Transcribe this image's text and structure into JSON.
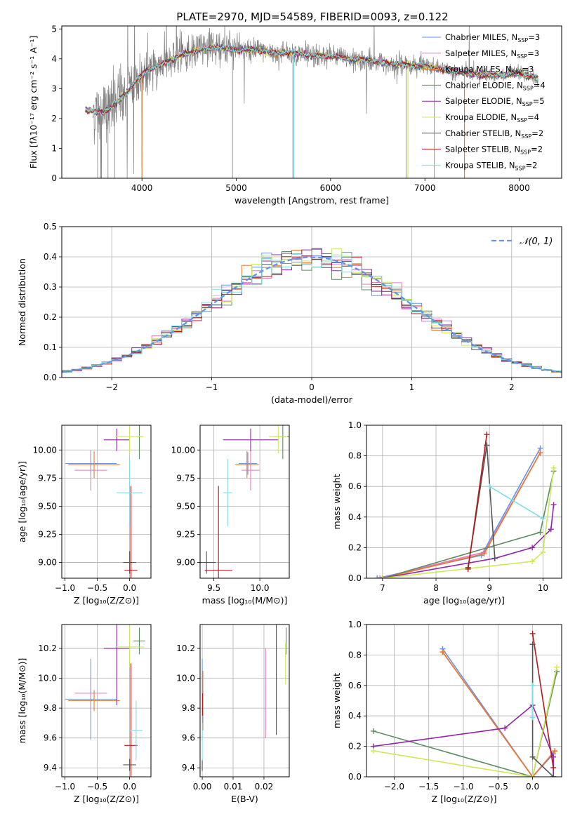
{
  "title": "PLATE=2970, MJD=54589, FIBERID=0093, z=0.122",
  "colors": {
    "chabrier_miles": "#6495ed",
    "salpeter_miles": "#e377c2",
    "kroupa_miles": "#e8792b",
    "chabrier_elodie": "#5e8c63",
    "salpeter_elodie": "#9126a8",
    "kroupa_elodie": "#cde85a",
    "chabrier_stelib": "#555555",
    "salpeter_stelib": "#b01a1a",
    "kroupa_stelib": "#7fdde6",
    "data": "#808080"
  },
  "chart_data": [
    {
      "id": "spectrum",
      "type": "line",
      "xlabel": "wavelength [Angstrom, rest frame]",
      "ylabel": "Flux [fλ10⁻¹⁷ erg cm⁻² s⁻¹ A⁻¹]",
      "xlim": [
        3150,
        8450
      ],
      "ylim": [
        0,
        5.1
      ],
      "xticks": [
        4000,
        5000,
        6000,
        7000,
        8000
      ],
      "yticks": [
        0,
        1,
        2,
        3,
        4,
        5
      ],
      "legend": [
        {
          "key": "chabrier_miles",
          "label": "Chabrier MILES, N",
          "sub": "SSP",
          "suffix": "=3"
        },
        {
          "key": "salpeter_miles",
          "label": "Salpeter MILES, N",
          "sub": "SSP",
          "suffix": "=3"
        },
        {
          "key": "kroupa_miles",
          "label": "Kroupa MILES, N",
          "sub": "SSP",
          "suffix": "=3"
        },
        {
          "key": "chabrier_elodie",
          "label": "Chabrier ELODIE, N",
          "sub": "SSP",
          "suffix": "=4"
        },
        {
          "key": "salpeter_elodie",
          "label": "Salpeter ELODIE, N",
          "sub": "SSP",
          "suffix": "=5"
        },
        {
          "key": "kroupa_elodie",
          "label": "Kroupa ELODIE, N",
          "sub": "SSP",
          "suffix": "=4"
        },
        {
          "key": "chabrier_stelib",
          "label": "Chabrier STELIB, N",
          "sub": "SSP",
          "suffix": "=2"
        },
        {
          "key": "salpeter_stelib",
          "label": "Salpeter STELIB, N",
          "sub": "SSP",
          "suffix": "=2"
        },
        {
          "key": "kroupa_stelib",
          "label": "Kroupa STELIB, N",
          "sub": "SSP",
          "suffix": "=2"
        }
      ],
      "continuum": {
        "x": [
          3400,
          3550,
          3650,
          3750,
          3850,
          3950,
          4050,
          4200,
          4400,
          4600,
          4800,
          5000,
          5200,
          5400,
          5600,
          5800,
          6000,
          6200,
          6400,
          6600,
          6800,
          7000,
          7200,
          7400,
          7600,
          7800,
          8000,
          8200
        ],
        "y": [
          2.3,
          2.2,
          2.3,
          2.6,
          2.9,
          3.3,
          3.6,
          3.8,
          4.1,
          4.3,
          4.4,
          4.3,
          4.3,
          4.2,
          4.2,
          4.1,
          4.1,
          4.0,
          3.95,
          3.85,
          3.8,
          3.75,
          3.65,
          3.55,
          3.45,
          3.45,
          3.5,
          3.35
        ]
      }
    },
    {
      "id": "residuals",
      "type": "step",
      "xlabel": "(data-model)/error",
      "ylabel": "Normed distribution",
      "xlim": [
        -2.5,
        2.5
      ],
      "ylim": [
        0,
        0.5
      ],
      "xticks": [
        -2,
        -1,
        0,
        1,
        2
      ],
      "yticks": [
        0.0,
        0.1,
        0.2,
        0.3,
        0.4,
        0.5
      ],
      "legend_label": "𝒩(0, 1)",
      "bin_width": 0.1
    },
    {
      "id": "age_vs_Z",
      "type": "errorbar",
      "xlabel": "Z [log₁₀(Z/Z⊙)]",
      "ylabel": "age  [log₁₀(age/yr)]",
      "xlim": [
        -1.05,
        0.33
      ],
      "ylim": [
        8.86,
        10.22
      ],
      "xticks": [
        -1.0,
        -0.5,
        0.0
      ],
      "yticks": [
        9.0,
        9.25,
        9.5,
        9.75,
        10.0
      ],
      "points": [
        {
          "key": "chabrier_miles",
          "x": -0.6,
          "xerr": 0.4,
          "y": 9.88,
          "yerr": 0.1
        },
        {
          "key": "salpeter_miles",
          "x": -0.6,
          "xerr": 0.25,
          "y": 9.82,
          "yerr": 0.18
        },
        {
          "key": "kroupa_miles",
          "x": -0.55,
          "xerr": 0.4,
          "y": 9.87,
          "yerr": 0.12
        },
        {
          "key": "chabrier_elodie",
          "x": 0.15,
          "xerr": 0.05,
          "y": 10.12,
          "yerr": 0.2
        },
        {
          "key": "salpeter_elodie",
          "x": -0.2,
          "xerr": 0.2,
          "y": 10.09,
          "yerr": 0.1
        },
        {
          "key": "kroupa_elodie",
          "x": 0.0,
          "xerr": 0.22,
          "y": 10.12,
          "yerr": 0.15
        },
        {
          "key": "chabrier_stelib",
          "x": 0.0,
          "xerr": 0.1,
          "y": 9.0,
          "yerr": 0.1
        },
        {
          "key": "salpeter_stelib",
          "x": 0.02,
          "xerr": 0.1,
          "y": 8.93,
          "yerr": 0.75
        },
        {
          "key": "kroupa_stelib",
          "x": 0.0,
          "xerr": 0.2,
          "y": 9.62,
          "yerr": 0.3
        }
      ]
    },
    {
      "id": "age_vs_mass",
      "type": "errorbar",
      "xlabel": "mass [log₁₀(M/M⊙)]",
      "ylabel": "",
      "xlim": [
        9.35,
        10.32
      ],
      "ylim": [
        8.86,
        10.22
      ],
      "xticks": [
        9.5,
        10.0
      ],
      "yticks": [
        9.0,
        9.25,
        9.5,
        9.75,
        10.0
      ],
      "points": [
        {
          "key": "chabrier_miles",
          "x": 9.87,
          "xerr": 0.1,
          "y": 9.88,
          "yerr": 0.1
        },
        {
          "key": "salpeter_miles",
          "x": 9.9,
          "xerr": 0.1,
          "y": 9.82,
          "yerr": 0.18
        },
        {
          "key": "kroupa_miles",
          "x": 9.86,
          "xerr": 0.13,
          "y": 9.87,
          "yerr": 0.12
        },
        {
          "key": "chabrier_elodie",
          "x": 10.25,
          "xerr": 0.1,
          "y": 10.12,
          "yerr": 0.2
        },
        {
          "key": "salpeter_elodie",
          "x": 9.9,
          "xerr": 0.3,
          "y": 10.09,
          "yerr": 0.1
        },
        {
          "key": "kroupa_elodie",
          "x": 10.2,
          "xerr": 0.1,
          "y": 10.12,
          "yerr": 0.15
        },
        {
          "key": "chabrier_stelib",
          "x": 9.42,
          "xerr": 0.1,
          "y": 9.0,
          "yerr": 0.1
        },
        {
          "key": "salpeter_stelib",
          "x": 9.55,
          "xerr": 0.15,
          "y": 8.93,
          "yerr": 0.75
        },
        {
          "key": "kroupa_stelib",
          "x": 9.65,
          "xerr": 0.05,
          "y": 9.62,
          "yerr": 0.3
        }
      ]
    },
    {
      "id": "weight_vs_age",
      "type": "line",
      "xlabel": "age  [log₁₀(age/yr)]",
      "ylabel": "mass weight",
      "xlim": [
        6.7,
        10.35
      ],
      "ylim": [
        0,
        1.0
      ],
      "xticks": [
        7,
        8,
        9,
        10
      ],
      "yticks": [
        0.0,
        0.2,
        0.4,
        0.6,
        0.8,
        1.0
      ],
      "series": [
        {
          "key": "chabrier_miles",
          "x": [
            6.9,
            8.85,
            9.95
          ],
          "y": [
            0.0,
            0.15,
            0.85
          ]
        },
        {
          "key": "salpeter_miles",
          "x": [
            6.95,
            8.9,
            9.95
          ],
          "y": [
            0.0,
            0.17,
            0.82
          ]
        },
        {
          "key": "kroupa_miles",
          "x": [
            7.0,
            8.9,
            9.95
          ],
          "y": [
            0.0,
            0.16,
            0.82
          ]
        },
        {
          "key": "chabrier_elodie",
          "x": [
            7.0,
            9.95,
            10.2
          ],
          "y": [
            0.0,
            0.3,
            0.7
          ]
        },
        {
          "key": "salpeter_elodie",
          "x": [
            7.0,
            9.1,
            9.8,
            10.15,
            10.2
          ],
          "y": [
            0.0,
            0.13,
            0.2,
            0.32,
            0.48
          ]
        },
        {
          "key": "kroupa_elodie",
          "x": [
            7.0,
            9.8,
            10.0,
            10.2
          ],
          "y": [
            0.0,
            0.11,
            0.17,
            0.72
          ]
        },
        {
          "key": "chabrier_stelib",
          "x": [
            8.6,
            8.95,
            9.1
          ],
          "y": [
            0.07,
            0.87,
            0.13
          ]
        },
        {
          "key": "salpeter_stelib",
          "x": [
            8.6,
            8.95
          ],
          "y": [
            0.06,
            0.94
          ]
        },
        {
          "key": "kroupa_stelib",
          "x": [
            9.0,
            10.0
          ],
          "y": [
            0.6,
            0.39
          ]
        }
      ]
    },
    {
      "id": "mass_vs_Z",
      "type": "errorbar",
      "xlabel": "Z [log₁₀(Z/Z⊙)]",
      "ylabel": "mass [log₁₀(M/M⊙)]",
      "xlim": [
        -1.05,
        0.33
      ],
      "ylim": [
        9.34,
        10.36
      ],
      "xticks": [
        -1.0,
        -0.5,
        0.0
      ],
      "yticks": [
        9.4,
        9.6,
        9.8,
        10.0,
        10.2
      ],
      "points": [
        {
          "key": "chabrier_miles",
          "x": -0.6,
          "xerr": 0.4,
          "y": 9.86,
          "yerr": 0.27
        },
        {
          "key": "salpeter_miles",
          "x": -0.6,
          "xerr": 0.25,
          "y": 9.9,
          "yerr": 0.12
        },
        {
          "key": "kroupa_miles",
          "x": -0.55,
          "xerr": 0.4,
          "y": 9.85,
          "yerr": 0.07
        },
        {
          "key": "chabrier_elodie",
          "x": 0.15,
          "xerr": 0.09,
          "y": 10.25,
          "yerr": 0.09
        },
        {
          "key": "salpeter_elodie",
          "x": -0.2,
          "xerr": 0.2,
          "y": 10.2,
          "yerr": 0.38
        },
        {
          "key": "kroupa_elodie",
          "x": 0.0,
          "xerr": 0.22,
          "y": 10.21,
          "yerr": 0.14
        },
        {
          "key": "chabrier_stelib",
          "x": 0.0,
          "xerr": 0.1,
          "y": 9.42,
          "yerr": 0.04
        },
        {
          "key": "salpeter_stelib",
          "x": 0.02,
          "xerr": 0.1,
          "y": 9.55,
          "yerr": 0.55
        },
        {
          "key": "kroupa_stelib",
          "x": 0.1,
          "xerr": 0.1,
          "y": 9.65,
          "yerr": 0.2
        }
      ]
    },
    {
      "id": "mass_vs_EBV",
      "type": "errorbar",
      "xlabel": "E(B-V)",
      "ylabel": "",
      "xlim": [
        -0.0007,
        0.0282
      ],
      "ylim": [
        9.34,
        10.36
      ],
      "xticks": [
        0.0,
        0.01,
        0.02
      ],
      "yticks": [
        9.4,
        9.6,
        9.8,
        10.0,
        10.2
      ],
      "points": [
        {
          "key": "chabrier_miles",
          "x": 0.0,
          "xerr": 0,
          "y": 9.86,
          "yerr": 0.27
        },
        {
          "key": "salpeter_miles",
          "x": 0.0205,
          "xerr": 0,
          "y": 9.9,
          "yerr": 0.3
        },
        {
          "key": "kroupa_miles",
          "x": 0.0002,
          "xerr": 0,
          "y": 9.85,
          "yerr": 0.2
        },
        {
          "key": "chabrier_elodie",
          "x": 0.0272,
          "xerr": 0,
          "y": 10.25,
          "yerr": 0.09
        },
        {
          "key": "salpeter_elodie",
          "x": 0.024,
          "xerr": 0,
          "y": 10.0,
          "yerr": 0.38
        },
        {
          "key": "kroupa_elodie",
          "x": 0.027,
          "xerr": 0,
          "y": 10.1,
          "yerr": 0.14
        },
        {
          "key": "chabrier_stelib",
          "x": 0.0,
          "xerr": 0,
          "y": 9.42,
          "yerr": 0.04
        },
        {
          "key": "salpeter_stelib",
          "x": 0.0001,
          "xerr": 0,
          "y": 9.8,
          "yerr": 0.1
        },
        {
          "key": "kroupa_stelib",
          "x": 0.0,
          "xerr": 0,
          "y": 9.6,
          "yerr": 0.15
        }
      ]
    },
    {
      "id": "weight_vs_Z",
      "type": "line",
      "xlabel": "Z [log₁₀(Z/Z⊙)]",
      "ylabel": "mass weight",
      "xlim": [
        -2.4,
        0.42
      ],
      "ylim": [
        0,
        1.0
      ],
      "xticks": [
        -2.0,
        -1.5,
        -1.0,
        -0.5,
        0.0
      ],
      "yticks": [
        0.0,
        0.2,
        0.4,
        0.6,
        0.8,
        1.0
      ],
      "series": [
        {
          "key": "chabrier_miles",
          "x": [
            -1.3,
            0.0,
            0.3
          ],
          "y": [
            0.84,
            0.0,
            0.15
          ]
        },
        {
          "key": "salpeter_miles",
          "x": [
            -1.3,
            0.0,
            0.32
          ],
          "y": [
            0.82,
            0.0,
            0.17
          ]
        },
        {
          "key": "kroupa_miles",
          "x": [
            -1.3,
            0.0,
            0.32
          ],
          "y": [
            0.82,
            0.0,
            0.17
          ]
        },
        {
          "key": "chabrier_elodie",
          "x": [
            -2.3,
            0.0,
            0.35
          ],
          "y": [
            0.3,
            0.0,
            0.69
          ]
        },
        {
          "key": "salpeter_elodie",
          "x": [
            -2.3,
            -0.4,
            0.0,
            0.3,
            0.3
          ],
          "y": [
            0.2,
            0.32,
            0.47,
            0.13,
            0.0
          ]
        },
        {
          "key": "kroupa_elodie",
          "x": [
            -2.3,
            0.0,
            0.35
          ],
          "y": [
            0.17,
            0.0,
            0.72
          ]
        },
        {
          "key": "chabrier_stelib",
          "x": [
            0.0,
            0.0,
            0.3
          ],
          "y": [
            0.87,
            0.13,
            0.0
          ]
        },
        {
          "key": "salpeter_stelib",
          "x": [
            0.0,
            0.3
          ],
          "y": [
            0.94,
            0.06
          ]
        },
        {
          "key": "kroupa_stelib",
          "x": [
            0.0,
            0.0
          ],
          "y": [
            0.6,
            0.39
          ]
        }
      ]
    }
  ]
}
